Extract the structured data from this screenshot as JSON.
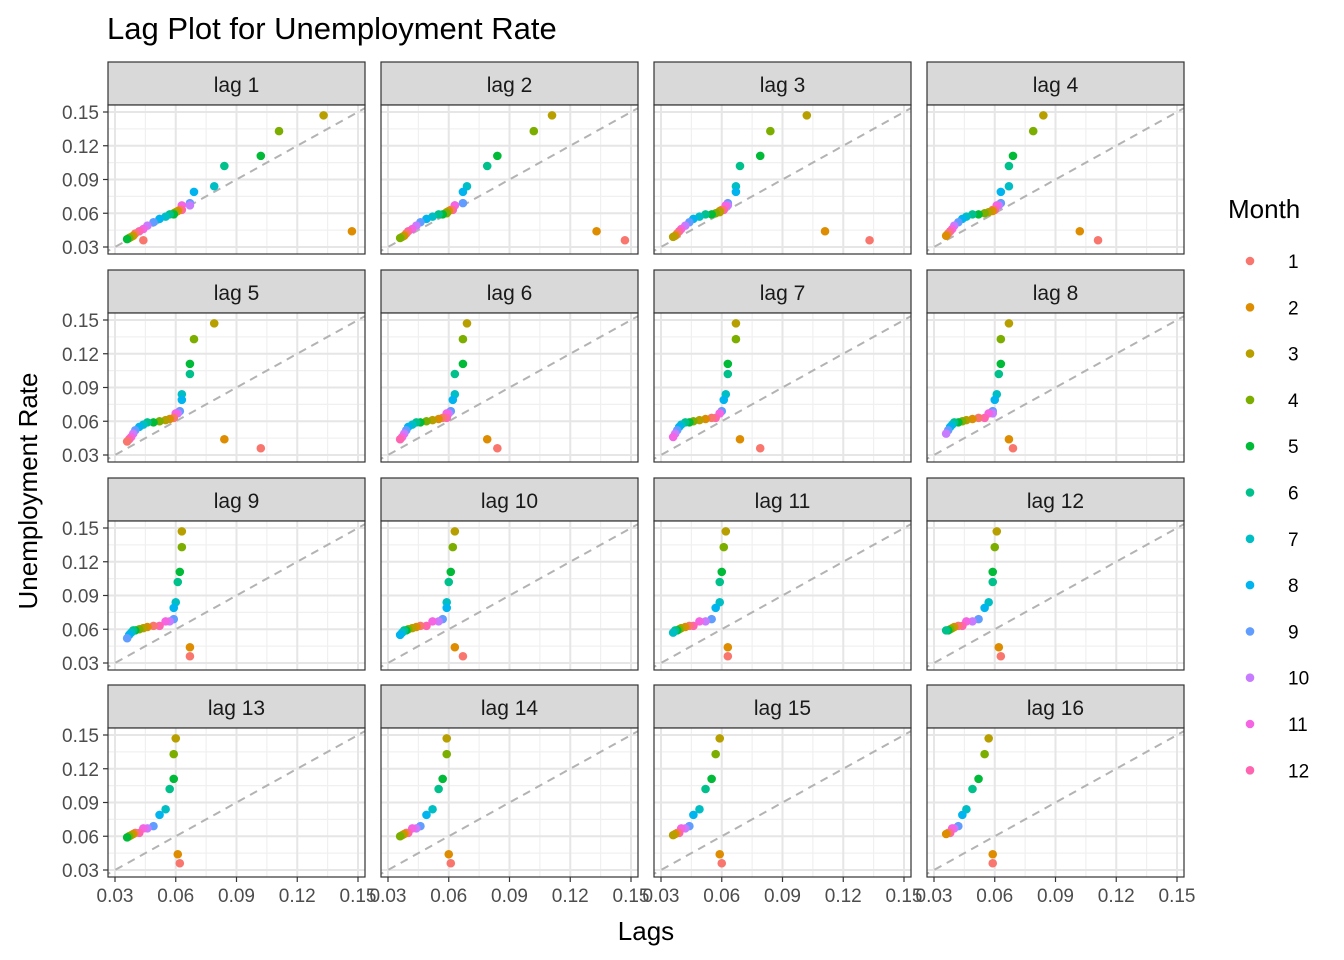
{
  "chart_data": {
    "type": "scatter",
    "title": "Lag Plot for Unemployment Rate",
    "xlabel": "Lags",
    "ylabel": "Unemployment Rate",
    "xlim": [
      0.03,
      0.15
    ],
    "ylim": [
      0.03,
      0.15
    ],
    "xticks": [
      "0.03",
      "0.06",
      "0.09",
      "0.12",
      "0.15"
    ],
    "yticks": [
      "0.03",
      "0.06",
      "0.09",
      "0.12",
      "0.15"
    ],
    "grid": true,
    "reference_line": "y = x (dashed)",
    "legend": {
      "title": "Month",
      "position": "right",
      "entries": [
        "1",
        "2",
        "3",
        "4",
        "5",
        "6",
        "7",
        "8",
        "9",
        "10",
        "11",
        "12"
      ],
      "colors": [
        "#F8766D",
        "#DE8C00",
        "#B79F00",
        "#7CAE00",
        "#00BA38",
        "#00C08B",
        "#00BFC4",
        "#00B4F0",
        "#619CFF",
        "#C77CFF",
        "#F564E3",
        "#FF64B0"
      ]
    },
    "series": [
      {
        "month": 3,
        "values": [
          0.036,
          0.044,
          0.147,
          0.133,
          0.111,
          0.102,
          0.084,
          0.079,
          0.069,
          0.067,
          0.067,
          0.063,
          0.063,
          0.062,
          0.061,
          0.06,
          0.059,
          0.059,
          0.057,
          0.055,
          0.052,
          0.049,
          0.046,
          0.044,
          0.042,
          0.04,
          0.039,
          0.038,
          0.037,
          0.036
        ]
      }
    ],
    "lag_panels": [
      "lag 1",
      "lag 2",
      "lag 3",
      "lag 4",
      "lag 5",
      "lag 6",
      "lag 7",
      "lag 8",
      "lag 9",
      "lag 10",
      "lag 11",
      "lag 12",
      "lag 13",
      "lag 14",
      "lag 15",
      "lag 16"
    ]
  }
}
